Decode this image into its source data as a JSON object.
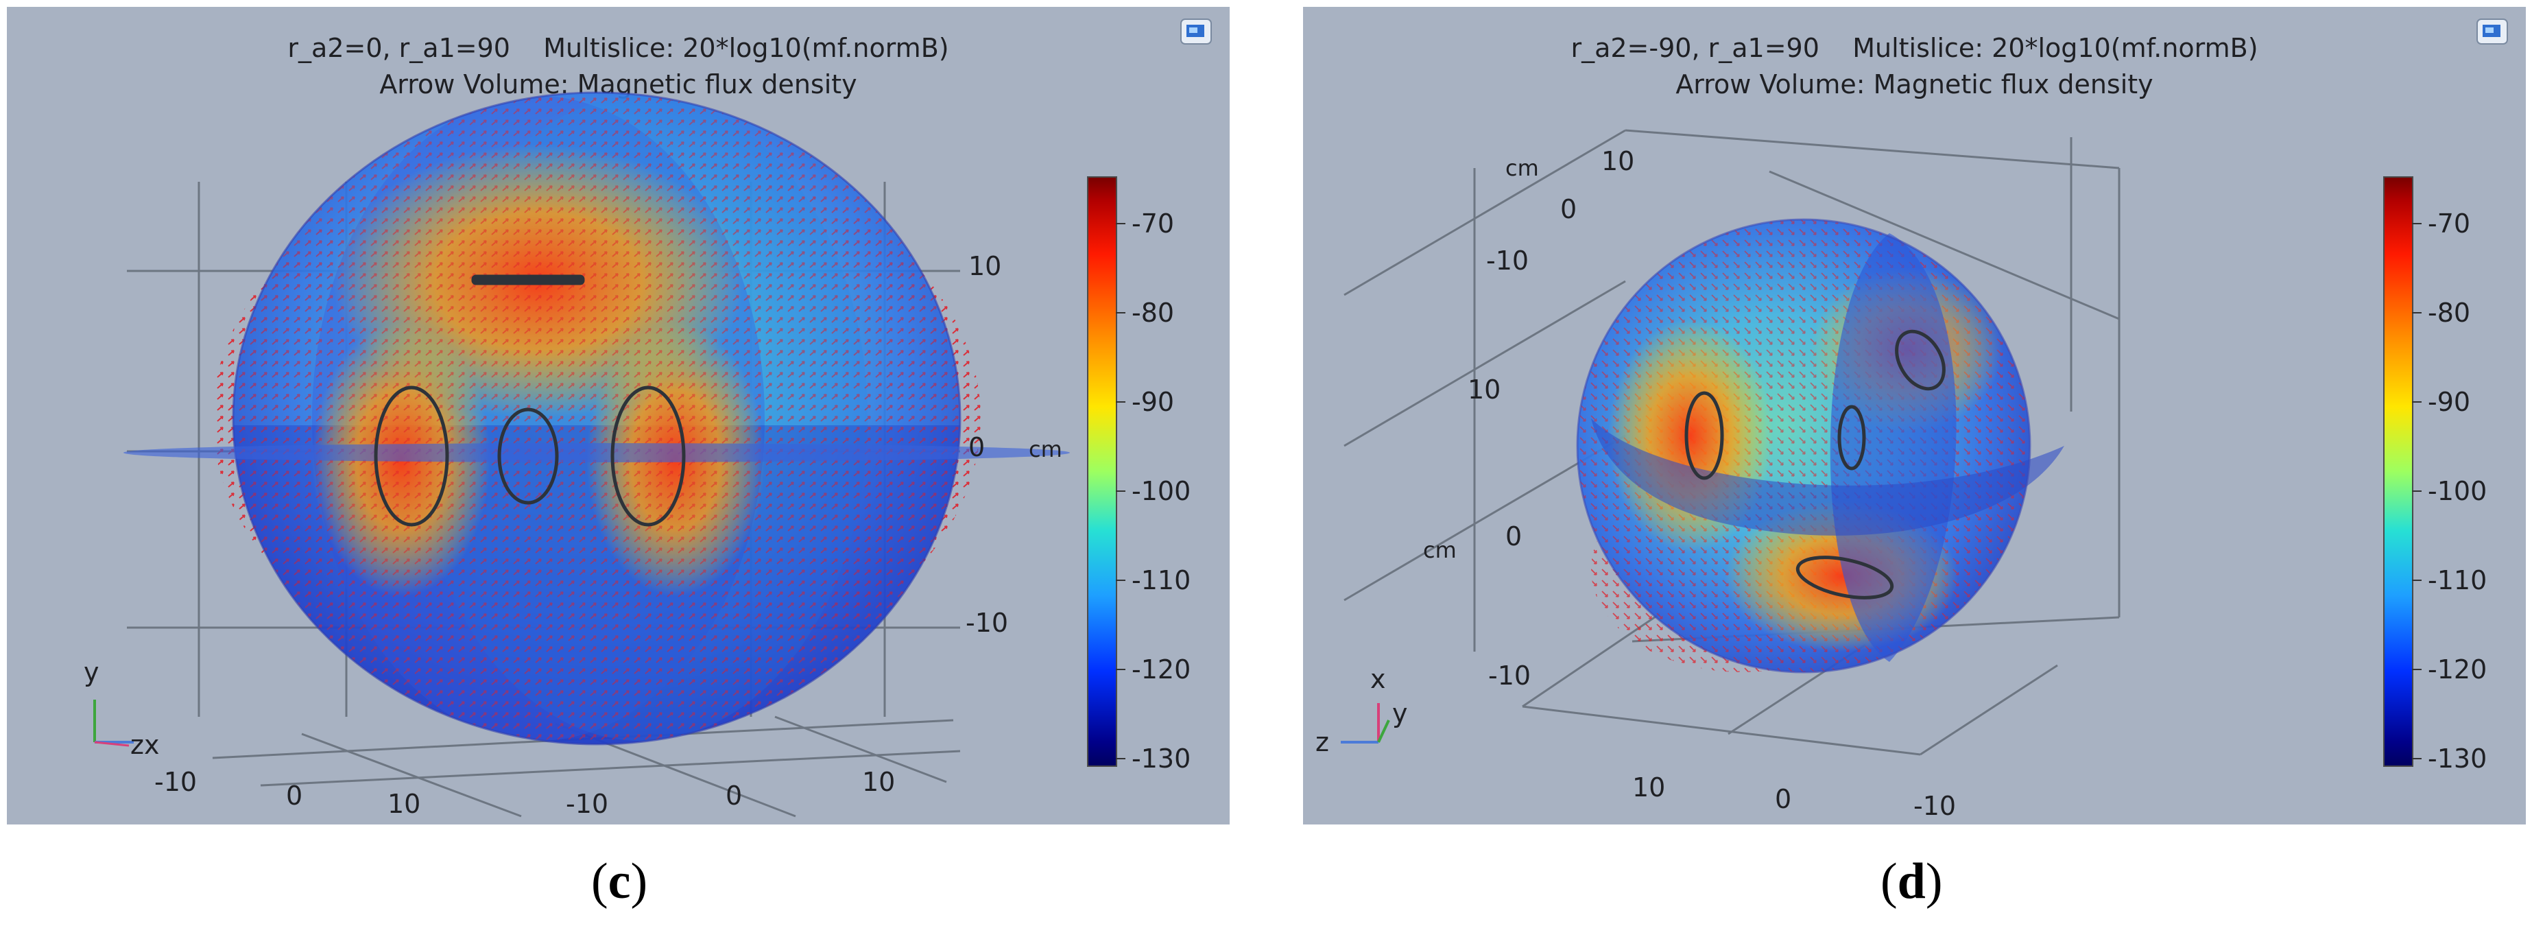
{
  "panels": [
    {
      "id": "c",
      "title_line1": "r_a2=0, r_a1=90    Multislice: 20*log10(mf.normB)",
      "title_line2": "Arrow Volume: Magnetic flux density",
      "colorbar_ticks": [
        "-70",
        "-80",
        "-90",
        "-100",
        "-110",
        "-120",
        "-130"
      ],
      "right_axis_ticks": [
        "10",
        "0",
        "-10"
      ],
      "unit_label": "cm",
      "bottom_ticks": [
        "-10",
        "0",
        "10",
        "-10",
        "0",
        "10"
      ],
      "triad": {
        "y": "y",
        "zx": "zx"
      },
      "caption_open": "(",
      "caption_letter": "c",
      "caption_close": ")"
    },
    {
      "id": "d",
      "title_line1": "r_a2=-90, r_a1=90    Multislice: 20*log10(mf.normB)",
      "title_line2": "Arrow Volume: Magnetic flux density",
      "colorbar_ticks": [
        "-70",
        "-80",
        "-90",
        "-100",
        "-110",
        "-120",
        "-130"
      ],
      "top_left_ticks": [
        "cm",
        "10",
        "0",
        "-10"
      ],
      "left_ticks": [
        "10",
        "cm",
        "0",
        "-10"
      ],
      "bottom_ticks": [
        "10",
        "0",
        "-10"
      ],
      "triad": {
        "x": "x",
        "y": "y",
        "z": "z"
      },
      "caption_open": "(",
      "caption_letter": "d",
      "caption_close": ")"
    }
  ],
  "colors": {
    "background": "#a8b2c2",
    "colormap": "jet",
    "arrows": "#e0202a"
  }
}
